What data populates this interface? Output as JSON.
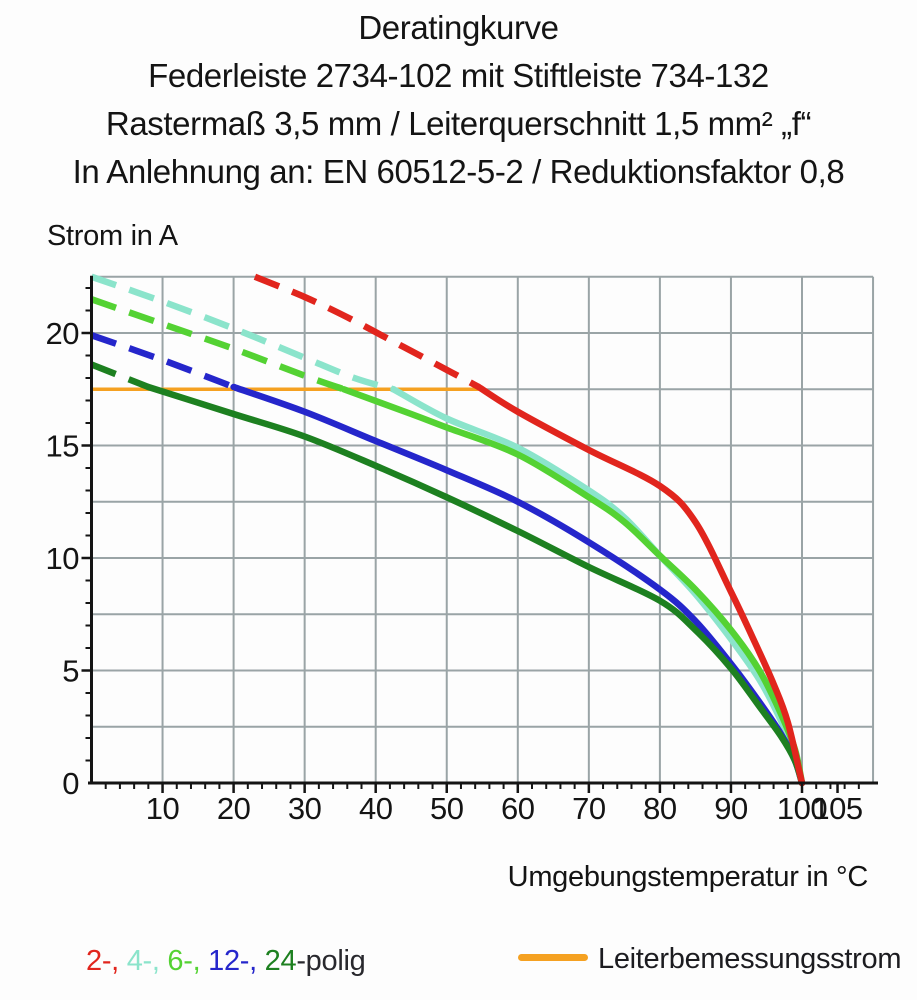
{
  "title": {
    "line1": "Deratingkurve",
    "line2": "Federleiste 2734-102 mit Stiftleiste 734-132",
    "line3": "Rastermaß 3,5 mm / Leiterquerschnitt 1,5 mm² „f“",
    "line4": "In Anlehnung an: EN 60512-5-2 / Reduktionsfaktor 0,8"
  },
  "chart_data": {
    "type": "line",
    "title": "Deratingkurve",
    "xlabel": "Umgebungstemperatur in °C",
    "ylabel": "Strom in A",
    "xlim": [
      0,
      110
    ],
    "ylim": [
      0,
      22.5
    ],
    "grid": true,
    "grid_x_step": 10,
    "grid_y_step": 2.5,
    "x_major_ticks": [
      10,
      20,
      30,
      40,
      50,
      60,
      70,
      80,
      90,
      100,
      105
    ],
    "y_major_ticks": [
      0,
      5,
      10,
      15,
      20
    ],
    "x_minor_step": 2,
    "y_minor_step": 1,
    "reference_line": {
      "label": "Leiterbemessungsstrom",
      "value": 17.5,
      "x_start": 0,
      "x_end": 54.5,
      "color": "#f5a121"
    },
    "dash_note": "curves are dashed above the reference line (17.5 A) and solid below it",
    "series": [
      {
        "name": "4-polig",
        "color": "#8be4cb",
        "solid_from": 42.5,
        "points": [
          [
            0,
            22.5
          ],
          [
            10,
            21.4
          ],
          [
            20,
            20.2
          ],
          [
            30,
            18.9
          ],
          [
            37,
            18.0
          ],
          [
            42.5,
            17.5
          ],
          [
            50,
            16.2
          ],
          [
            60,
            14.9
          ],
          [
            70,
            13.0
          ],
          [
            75,
            11.8
          ],
          [
            80,
            10.1
          ],
          [
            85,
            8.4
          ],
          [
            90,
            6.4
          ],
          [
            94,
            4.6
          ],
          [
            97,
            2.8
          ],
          [
            99,
            1.3
          ],
          [
            100,
            0
          ]
        ]
      },
      {
        "name": "6-polig",
        "color": "#54d233",
        "solid_from": 35.5,
        "points": [
          [
            0,
            21.5
          ],
          [
            10,
            20.4
          ],
          [
            20,
            19.3
          ],
          [
            30,
            18.1
          ],
          [
            35.5,
            17.5
          ],
          [
            45,
            16.4
          ],
          [
            50,
            15.8
          ],
          [
            60,
            14.6
          ],
          [
            70,
            12.7
          ],
          [
            75,
            11.6
          ],
          [
            80,
            10.1
          ],
          [
            85,
            8.6
          ],
          [
            90,
            6.8
          ],
          [
            94,
            5.0
          ],
          [
            97,
            3.1
          ],
          [
            99,
            1.5
          ],
          [
            100,
            0
          ]
        ]
      },
      {
        "name": "12-polig",
        "color": "#2526cb",
        "solid_from": 20,
        "points": [
          [
            0,
            19.9
          ],
          [
            10,
            18.8
          ],
          [
            20,
            17.6
          ],
          [
            30,
            16.5
          ],
          [
            40,
            15.2
          ],
          [
            50,
            13.9
          ],
          [
            60,
            12.5
          ],
          [
            70,
            10.7
          ],
          [
            80,
            8.6
          ],
          [
            85,
            7.2
          ],
          [
            90,
            5.3
          ],
          [
            94,
            3.6
          ],
          [
            97,
            2.2
          ],
          [
            99,
            1.0
          ],
          [
            100,
            0
          ]
        ]
      },
      {
        "name": "24-polig",
        "color": "#1d8020",
        "solid_from": 8,
        "points": [
          [
            0,
            18.6
          ],
          [
            8,
            17.6
          ],
          [
            20,
            16.4
          ],
          [
            30,
            15.4
          ],
          [
            40,
            14.1
          ],
          [
            50,
            12.7
          ],
          [
            60,
            11.2
          ],
          [
            70,
            9.6
          ],
          [
            80,
            8.1
          ],
          [
            85,
            6.8
          ],
          [
            90,
            5.1
          ],
          [
            94,
            3.4
          ],
          [
            97,
            2.1
          ],
          [
            99,
            1.0
          ],
          [
            100,
            0
          ]
        ]
      },
      {
        "name": "2-polig",
        "color": "#e1251d",
        "solid_from": 54.5,
        "points": [
          [
            23,
            22.5
          ],
          [
            30,
            21.6
          ],
          [
            36,
            20.7
          ],
          [
            42,
            19.7
          ],
          [
            48,
            18.7
          ],
          [
            54.5,
            17.6
          ],
          [
            60,
            16.5
          ],
          [
            70,
            14.8
          ],
          [
            80,
            13.2
          ],
          [
            85,
            11.6
          ],
          [
            90,
            8.5
          ],
          [
            93,
            6.5
          ],
          [
            96,
            4.4
          ],
          [
            98,
            2.7
          ],
          [
            100,
            0
          ]
        ]
      }
    ],
    "legend_position": "bottom"
  },
  "legend": {
    "parts": [
      {
        "text": "2-, ",
        "color": "#e1251d",
        "series": "2-polig"
      },
      {
        "text": "4-, ",
        "color": "#8be4cb",
        "series": "4-polig"
      },
      {
        "text": "6-, ",
        "color": "#54d233",
        "series": "6-polig"
      },
      {
        "text": "12-, ",
        "color": "#2526cb",
        "series": "12-polig"
      },
      {
        "text": "24",
        "color": "#1d8020",
        "series": "24-polig"
      },
      {
        "text": "-polig",
        "color": "#28282d",
        "series": ""
      }
    ],
    "reference_label": "Leiterbemessungsstrom"
  },
  "colors": {
    "background": "#fdfdfd",
    "grid": "#9aa4a6",
    "axis": "#141414",
    "text": "#141414",
    "reference_orange": "#f5a121"
  }
}
